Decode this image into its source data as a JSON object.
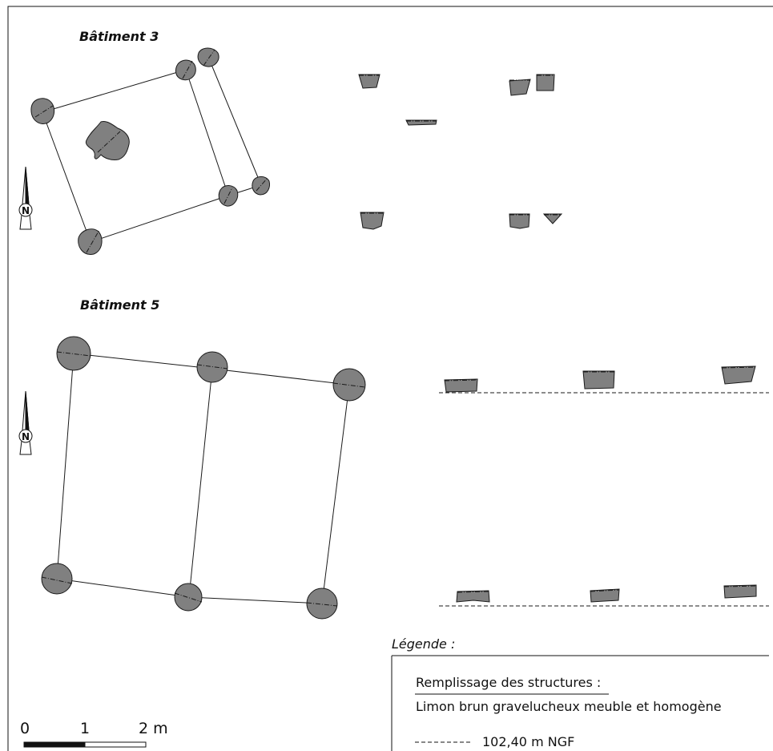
{
  "buildings": [
    {
      "title": "Bâtiment 3"
    },
    {
      "title": "Bâtiment 5"
    }
  ],
  "north_label": "N",
  "legend": {
    "title": "Légende :",
    "fill_heading": "Remplissage des structures :",
    "fill_desc": "Limon brun gravelucheux meuble et homogène",
    "line_label": "102,40 m NGF"
  },
  "scale_bar": {
    "labels": [
      "0",
      "1",
      "2 m"
    ]
  },
  "colors": {
    "fill": "#808080",
    "stroke": "#1a1a1a",
    "background": "#ffffff"
  }
}
